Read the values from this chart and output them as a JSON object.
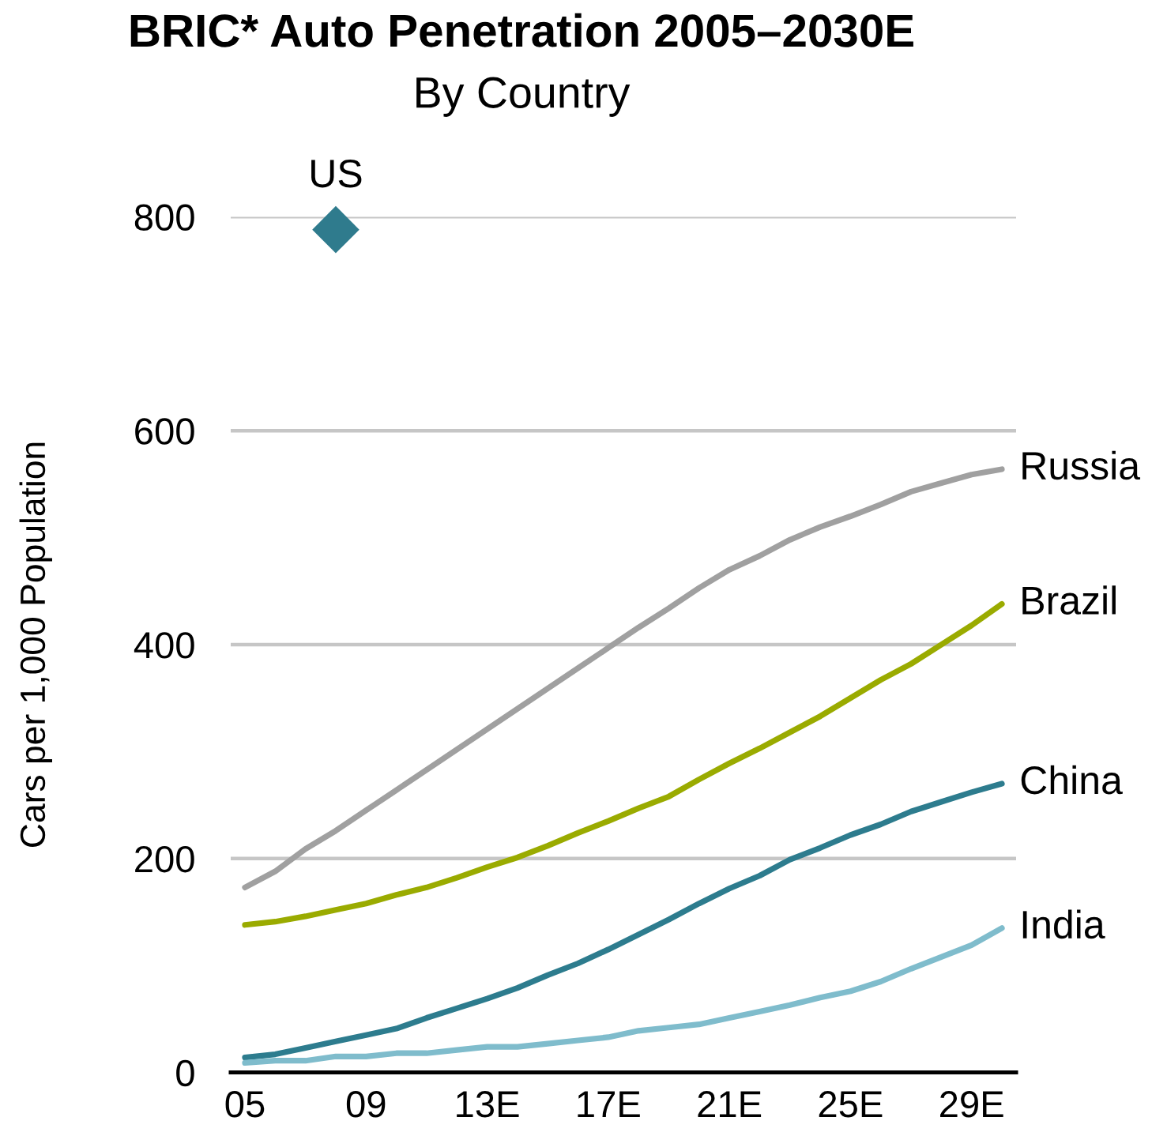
{
  "chart_data": {
    "type": "line",
    "title": "BRIC* Auto Penetration 2005–2030E",
    "subtitle": "By Country",
    "ylabel": "Cars per 1,000 Population",
    "categories": [
      "05",
      null,
      null,
      null,
      "09",
      null,
      null,
      null,
      "13E",
      null,
      null,
      null,
      "17E",
      null,
      null,
      null,
      "21E",
      null,
      null,
      null,
      "25E",
      null,
      null,
      null,
      "29E",
      null
    ],
    "ylim": [
      0,
      800
    ],
    "yticks": [
      0,
      200,
      400,
      600,
      800
    ],
    "grid": "y",
    "legend": false,
    "marker": "none",
    "line_style": "solid",
    "series": [
      {
        "name": "Russia",
        "color": "#a0a0a0",
        "values": [
          173,
          188,
          209,
          226,
          245,
          264,
          283,
          302,
          321,
          340,
          359,
          378,
          397,
          416,
          434,
          453,
          470,
          483,
          498,
          510,
          520,
          531,
          543,
          551,
          559,
          564
        ]
      },
      {
        "name": "Brazil",
        "color": "#9aab00",
        "values": [
          138,
          141,
          146,
          152,
          158,
          166,
          173,
          182,
          192,
          201,
          212,
          224,
          235,
          247,
          258,
          274,
          289,
          303,
          318,
          333,
          350,
          367,
          382,
          400,
          418,
          438
        ]
      },
      {
        "name": "China",
        "color": "#2d7c8e",
        "values": [
          14,
          17,
          23,
          29,
          35,
          41,
          51,
          60,
          69,
          79,
          91,
          102,
          115,
          129,
          143,
          158,
          172,
          184,
          199,
          210,
          222,
          232,
          244,
          253,
          262,
          270
        ]
      },
      {
        "name": "India",
        "color": "#7fbccc",
        "values": [
          9,
          11,
          11,
          15,
          15,
          18,
          18,
          21,
          24,
          24,
          27,
          30,
          33,
          39,
          42,
          45,
          51,
          57,
          63,
          70,
          76,
          85,
          97,
          108,
          119,
          135
        ]
      },
      {
        "name": "US",
        "type": "scatter",
        "marker": "diamond",
        "color": "#2f7b8d",
        "values": [
          null,
          null,
          null,
          788,
          null,
          null,
          null,
          null,
          null,
          null,
          null,
          null,
          null,
          null,
          null,
          null,
          null,
          null,
          null,
          null,
          null,
          null,
          null,
          null,
          null,
          null
        ]
      }
    ]
  }
}
